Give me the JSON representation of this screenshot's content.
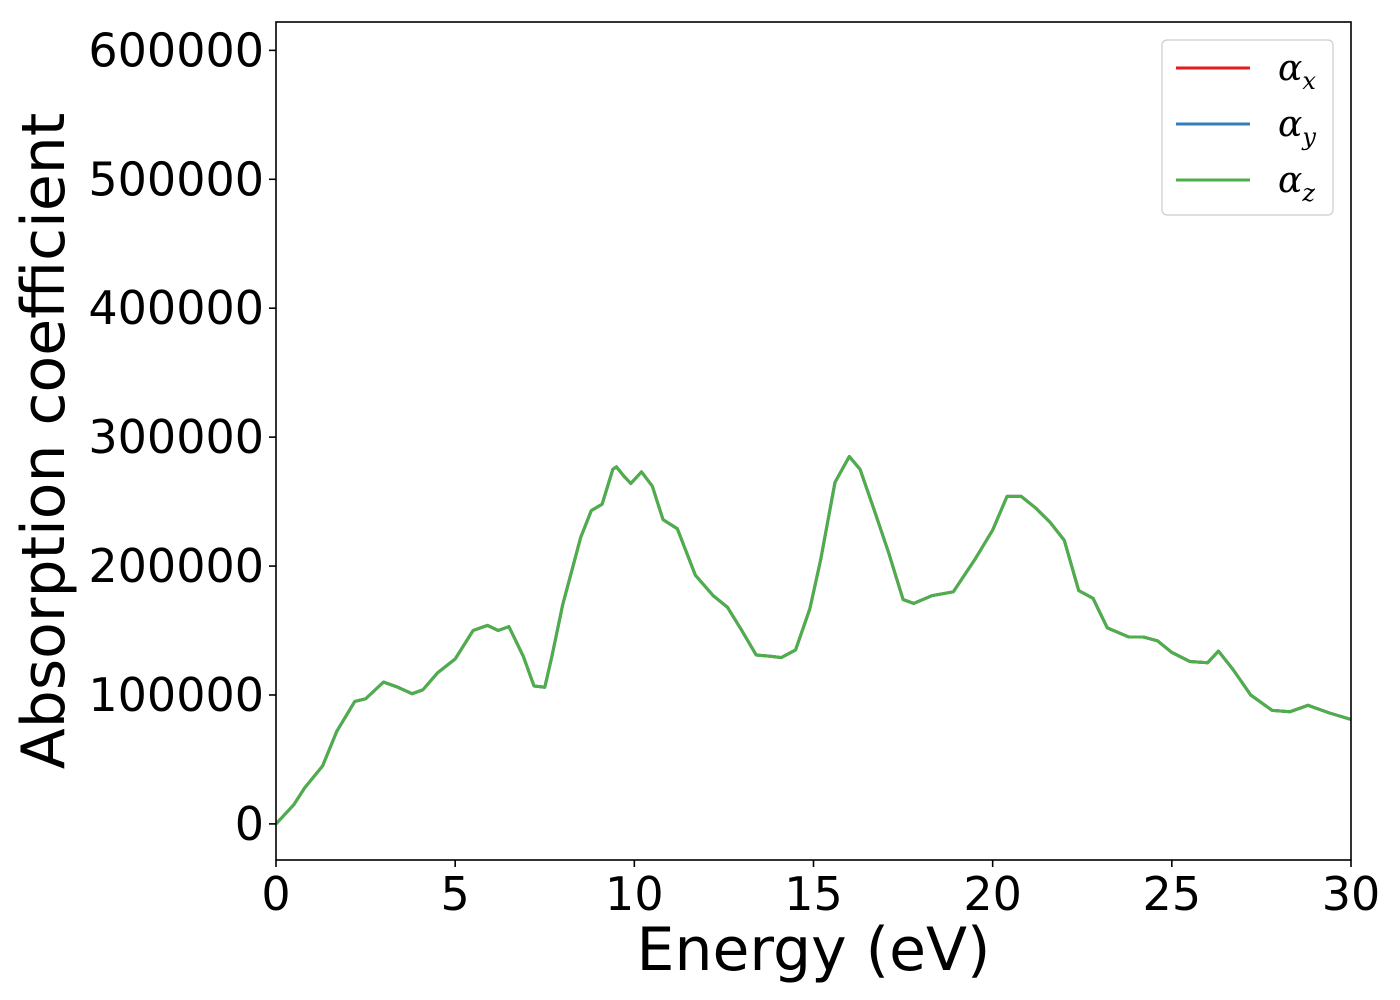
{
  "chart_data": {
    "type": "line",
    "title": "",
    "xlabel": "Energy (eV)",
    "ylabel": "Absorption coefficient",
    "xlim": [
      0,
      30
    ],
    "ylim": [
      -28000,
      622000
    ],
    "xticks": [
      0,
      5,
      10,
      15,
      20,
      25,
      30
    ],
    "xtick_labels": [
      "0",
      "5",
      "10",
      "15",
      "20",
      "25",
      "30"
    ],
    "yticks": [
      0,
      100000,
      200000,
      300000,
      400000,
      500000,
      600000
    ],
    "ytick_labels": [
      "0",
      "100000",
      "200000",
      "300000",
      "400000",
      "500000",
      "600000"
    ],
    "grid": false,
    "legend_position": "top-right",
    "x": [
      0,
      0.5,
      0.8,
      1.3,
      1.7,
      2.2,
      2.5,
      3.0,
      3.4,
      3.8,
      4.1,
      4.5,
      5.0,
      5.5,
      5.9,
      6.2,
      6.5,
      6.9,
      7.2,
      7.5,
      7.7,
      8.0,
      8.5,
      8.8,
      9.1,
      9.4,
      9.5,
      9.7,
      9.9,
      10.2,
      10.5,
      10.8,
      11.2,
      11.7,
      12.2,
      12.6,
      13.0,
      13.4,
      13.8,
      14.1,
      14.5,
      14.9,
      15.2,
      15.6,
      16.0,
      16.3,
      16.7,
      17.1,
      17.5,
      17.8,
      18.3,
      18.9,
      19.5,
      20.0,
      20.4,
      20.8,
      21.2,
      21.6,
      22.0,
      22.4,
      22.8,
      23.2,
      23.8,
      24.2,
      24.6,
      25.0,
      25.5,
      26.0,
      26.3,
      26.7,
      27.2,
      27.8,
      28.3,
      28.8,
      29.4,
      30.0
    ],
    "series": [
      {
        "name": "αx",
        "name_base": "α",
        "name_sub": "x",
        "color": "#e41a1c",
        "values": [
          0,
          15000,
          28000,
          45000,
          72000,
          95000,
          97000,
          110000,
          106000,
          101000,
          104000,
          117000,
          128000,
          150000,
          154000,
          150000,
          153000,
          130000,
          107000,
          106000,
          130000,
          170000,
          222000,
          243000,
          248000,
          275000,
          277000,
          270000,
          264000,
          273000,
          262000,
          236000,
          229000,
          193000,
          177000,
          168000,
          150000,
          131000,
          130000,
          129000,
          135000,
          167000,
          205000,
          265000,
          285000,
          275000,
          243000,
          210000,
          174000,
          171000,
          177000,
          180000,
          205000,
          228000,
          254000,
          254000,
          245000,
          234000,
          220000,
          181000,
          175000,
          152000,
          145000,
          145000,
          142000,
          133000,
          126000,
          125000,
          134000,
          120000,
          100000,
          88000,
          87000,
          92000,
          86000,
          81000
        ]
      },
      {
        "name": "αy",
        "name_base": "α",
        "name_sub": "y",
        "color": "#377eb8",
        "values": [
          0,
          15000,
          28000,
          45000,
          72000,
          95000,
          97000,
          110000,
          106000,
          101000,
          104000,
          117000,
          128000,
          150000,
          154000,
          150000,
          153000,
          130000,
          107000,
          106000,
          130000,
          170000,
          222000,
          243000,
          248000,
          275000,
          277000,
          270000,
          264000,
          273000,
          262000,
          236000,
          229000,
          193000,
          177000,
          168000,
          150000,
          131000,
          130000,
          129000,
          135000,
          167000,
          205000,
          265000,
          285000,
          275000,
          243000,
          210000,
          174000,
          171000,
          177000,
          180000,
          205000,
          228000,
          254000,
          254000,
          245000,
          234000,
          220000,
          181000,
          175000,
          152000,
          145000,
          145000,
          142000,
          133000,
          126000,
          125000,
          134000,
          120000,
          100000,
          88000,
          87000,
          92000,
          86000,
          81000
        ]
      },
      {
        "name": "αz",
        "name_base": "α",
        "name_sub": "z",
        "color": "#4daf4a",
        "values": [
          0,
          15000,
          28000,
          45000,
          72000,
          95000,
          97000,
          110000,
          106000,
          101000,
          104000,
          117000,
          128000,
          150000,
          154000,
          150000,
          153000,
          130000,
          107000,
          106000,
          130000,
          170000,
          222000,
          243000,
          248000,
          275000,
          277000,
          270000,
          264000,
          273000,
          262000,
          236000,
          229000,
          193000,
          177000,
          168000,
          150000,
          131000,
          130000,
          129000,
          135000,
          167000,
          205000,
          265000,
          285000,
          275000,
          243000,
          210000,
          174000,
          171000,
          177000,
          180000,
          205000,
          228000,
          254000,
          254000,
          245000,
          234000,
          220000,
          181000,
          175000,
          152000,
          145000,
          145000,
          142000,
          133000,
          126000,
          125000,
          134000,
          120000,
          100000,
          88000,
          87000,
          92000,
          86000,
          81000
        ]
      }
    ]
  }
}
